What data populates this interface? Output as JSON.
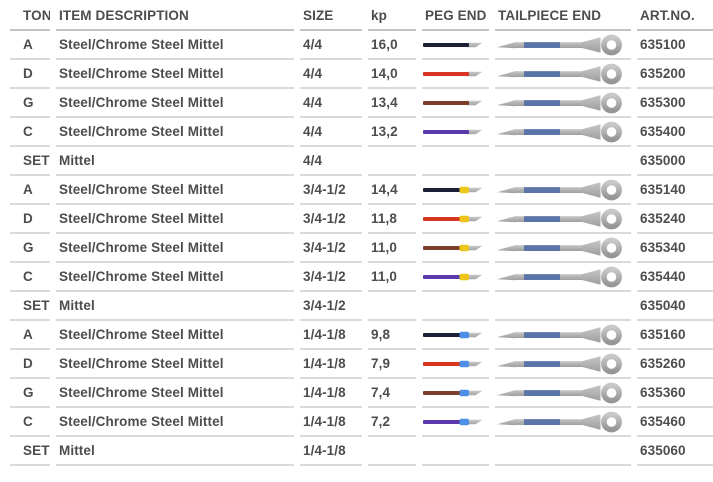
{
  "table": {
    "columns": [
      "TON",
      "ITEM DESCRIPTION",
      "SIZE",
      "kp",
      "PEG END",
      "TAILPIECE END",
      "ART.NO."
    ],
    "rows": [
      {
        "ton": "A",
        "description": "Steel/Chrome Steel Mittel",
        "size": "4/4",
        "kp": "16,0",
        "has_graphics": true,
        "peg_color": "#1c2137",
        "tip_color": null,
        "art_no": "635100"
      },
      {
        "ton": "D",
        "description": "Steel/Chrome Steel Mittel",
        "size": "4/4",
        "kp": "14,0",
        "has_graphics": true,
        "peg_color": "#d93321",
        "tip_color": null,
        "art_no": "635200"
      },
      {
        "ton": "G",
        "description": "Steel/Chrome Steel Mittel",
        "size": "4/4",
        "kp": "13,4",
        "has_graphics": true,
        "peg_color": "#7d3e29",
        "tip_color": null,
        "art_no": "635300"
      },
      {
        "ton": "C",
        "description": "Steel/Chrome Steel Mittel",
        "size": "4/4",
        "kp": "13,2",
        "has_graphics": true,
        "peg_color": "#5a3aab",
        "tip_color": null,
        "art_no": "635400"
      },
      {
        "ton": "SET",
        "description": "Mittel",
        "size": "4/4",
        "kp": "",
        "has_graphics": false,
        "peg_color": null,
        "tip_color": null,
        "art_no": "635000"
      },
      {
        "ton": "A",
        "description": "Steel/Chrome Steel Mittel",
        "size": "3/4-1/2",
        "kp": "14,4",
        "has_graphics": true,
        "peg_color": "#1c2137",
        "tip_color": "#eec61a",
        "art_no": "635140"
      },
      {
        "ton": "D",
        "description": "Steel/Chrome Steel Mittel",
        "size": "3/4-1/2",
        "kp": "11,8",
        "has_graphics": true,
        "peg_color": "#d93321",
        "tip_color": "#eec61a",
        "art_no": "635240"
      },
      {
        "ton": "G",
        "description": "Steel/Chrome Steel Mittel",
        "size": "3/4-1/2",
        "kp": "11,0",
        "has_graphics": true,
        "peg_color": "#7d3e29",
        "tip_color": "#eec61a",
        "art_no": "635340"
      },
      {
        "ton": "C",
        "description": "Steel/Chrome Steel Mittel",
        "size": "3/4-1/2",
        "kp": "11,0",
        "has_graphics": true,
        "peg_color": "#5a3aab",
        "tip_color": "#eec61a",
        "art_no": "635440"
      },
      {
        "ton": "SET",
        "description": "Mittel",
        "size": "3/4-1/2",
        "kp": "",
        "has_graphics": false,
        "peg_color": null,
        "tip_color": null,
        "art_no": "635040"
      },
      {
        "ton": "A",
        "description": "Steel/Chrome Steel Mittel",
        "size": "1/4-1/8",
        "kp": "9,8",
        "has_graphics": true,
        "peg_color": "#1c2137",
        "tip_color": "#4d8fe6",
        "art_no": "635160"
      },
      {
        "ton": "D",
        "description": "Steel/Chrome Steel Mittel",
        "size": "1/4-1/8",
        "kp": "7,9",
        "has_graphics": true,
        "peg_color": "#d93321",
        "tip_color": "#4d8fe6",
        "art_no": "635260"
      },
      {
        "ton": "G",
        "description": "Steel/Chrome Steel Mittel",
        "size": "1/4-1/8",
        "kp": "7,4",
        "has_graphics": true,
        "peg_color": "#7d3e29",
        "tip_color": "#4d8fe6",
        "art_no": "635360"
      },
      {
        "ton": "C",
        "description": "Steel/Chrome Steel Mittel",
        "size": "1/4-1/8",
        "kp": "7,2",
        "has_graphics": true,
        "peg_color": "#5a3aab",
        "tip_color": "#4d8fe6",
        "art_no": "635460"
      },
      {
        "ton": "SET",
        "description": "Mittel",
        "size": "1/4-1/8",
        "kp": "",
        "has_graphics": false,
        "peg_color": null,
        "tip_color": null,
        "art_no": "635060"
      }
    ]
  },
  "graphics": {
    "peg_blade_gray": "#b5b5b5",
    "tailpiece_shaft_gray": "#b2b2b2",
    "tailpiece_blue": "#5a74a8",
    "ring_gray": "#adadad"
  },
  "colors": {
    "text": "#4d4d4d",
    "header_divider": "#c3c3c3",
    "row_divider": "#dadada",
    "background": "#ffffff"
  }
}
